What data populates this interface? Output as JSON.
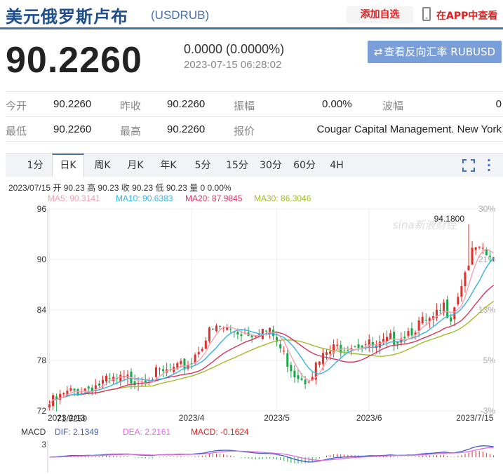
{
  "header": {
    "title": "美元俄罗斯卢布",
    "code": "(USDRUB)",
    "add_watch": "添加自选",
    "app_link": "在APP中查看"
  },
  "quote": {
    "price": "90.2260",
    "change": "0.0000 (0.0000%)",
    "time": "2023-07-15 06:28:02",
    "reverse_button": "查看反向汇率 RUBUSD"
  },
  "stats": {
    "row1": [
      {
        "label": "今开",
        "value": "90.2260"
      },
      {
        "label": "昨收",
        "value": "90.2260"
      },
      {
        "label": "振幅",
        "value": "0.00%"
      },
      {
        "label": "波幅",
        "value": "0"
      }
    ],
    "row2": [
      {
        "label": "最低",
        "value": "90.2260"
      },
      {
        "label": "最高",
        "value": "90.2260"
      },
      {
        "label": "报价",
        "value": "Cougar Capital Management. New York"
      }
    ]
  },
  "toolbar": {
    "tabs": [
      "1分",
      "日K",
      "周K",
      "月K",
      "年K",
      "5分",
      "15分",
      "30分",
      "60分",
      "4H"
    ],
    "active_index": 1
  },
  "chart_info": {
    "ohlc": "2023/07/15 开 90.23 高 90.23 收 90.23 低 90.23 量 0 0.00%",
    "ma5": "MA5: 90.3141",
    "ma10": "MA10: 90.6383",
    "ma20": "MA20: 87.9845",
    "ma30": "MA30: 86.3046",
    "watermark": "sina新浪财经",
    "macd_title": "MACD",
    "dif": "DIF: 2.1349",
    "dea": "DEA: 2.2161",
    "macd": "MACD: -0.1624",
    "macd_axis": "3"
  },
  "colors": {
    "up": "#e0302a",
    "down": "#1aa64a",
    "ma5": "#f2a0b4",
    "ma10": "#37b3e0",
    "ma20": "#d8345f",
    "ma30": "#9fbd2a",
    "dif": "#3f5fc8",
    "dea": "#e06ce0",
    "accent": "#4a6fa5"
  },
  "chart_data": {
    "type": "candlestick",
    "ylim": [
      72,
      96
    ],
    "y_ticks": [
      "96",
      "90",
      "84",
      "78",
      "72"
    ],
    "right_ticks": [
      "30%",
      "21%",
      "13%",
      "5%",
      "-3%"
    ],
    "x_ticks": [
      "2023/2/13",
      "2023/4",
      "2023/5",
      "2023/6",
      "2023/7/15"
    ],
    "x_tick_index": [
      0,
      40,
      64,
      90,
      125
    ],
    "max_label": "94.1800",
    "min_label": "71.9250",
    "n": 126,
    "max_index": 118,
    "min_index": 2,
    "close_path": [
      [
        0,
        72.8
      ],
      [
        5,
        74.0
      ],
      [
        10,
        74.7
      ],
      [
        15,
        75.3
      ],
      [
        20,
        75.6
      ],
      [
        25,
        75.9
      ],
      [
        30,
        76.3
      ],
      [
        36,
        76.8
      ],
      [
        40,
        78.0
      ],
      [
        42,
        79.5
      ],
      [
        45,
        81.2
      ],
      [
        48,
        81.9
      ],
      [
        52,
        81.5
      ],
      [
        56,
        81.4
      ],
      [
        60,
        81.6
      ],
      [
        63,
        80.9
      ],
      [
        66,
        78.6
      ],
      [
        69,
        76.6
      ],
      [
        72,
        75.9
      ],
      [
        75,
        77.2
      ],
      [
        78,
        78.8
      ],
      [
        82,
        79.7
      ],
      [
        86,
        80.1
      ],
      [
        89,
        80.0
      ],
      [
        92,
        79.3
      ],
      [
        96,
        80.4
      ],
      [
        100,
        81.3
      ],
      [
        104,
        82.3
      ],
      [
        108,
        82.6
      ],
      [
        111,
        84.3
      ],
      [
        113,
        83.5
      ],
      [
        116,
        87.3
      ],
      [
        118,
        89.8
      ],
      [
        120,
        91.2
      ],
      [
        122,
        90.5
      ],
      [
        124,
        90.3
      ],
      [
        125,
        90.2
      ]
    ],
    "last_close": 90.226,
    "ma5_last": 90.3141,
    "ma10_last": 90.6383,
    "ma20_last": 87.9845,
    "ma30_last": 86.3046,
    "macd_last": {
      "dif": 2.1349,
      "dea": 2.2161,
      "macd": -0.1624
    }
  }
}
